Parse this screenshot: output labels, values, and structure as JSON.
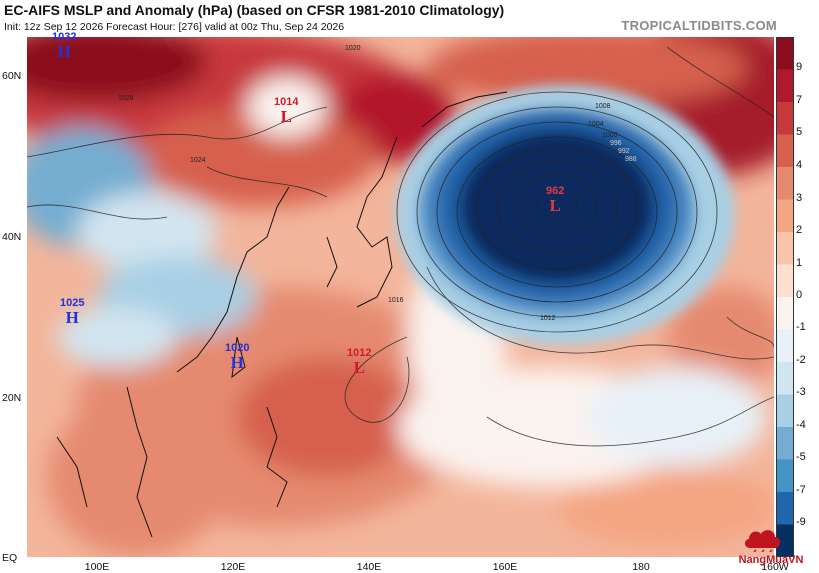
{
  "header": {
    "title": "EC-AIFS MSLP and Anomaly (hPa) (based on CFSR 1981-2010 Climatology)",
    "subtitle": "Init: 12z Sep 12 2026   Forecast Hour: [276]   valid at 00z Thu, Sep 24 2026",
    "brand": "TROPICALTIDBITS.COM"
  },
  "axes": {
    "lat_labels": [
      "60N",
      "40N",
      "20N",
      "EQ"
    ],
    "lon_labels": [
      "100E",
      "120E",
      "140E",
      "160E",
      "180",
      "160W"
    ]
  },
  "colorbar": {
    "labels": [
      "9",
      "7",
      "5",
      "4",
      "3",
      "2",
      "1",
      "0",
      "-1",
      "-2",
      "-3",
      "-4",
      "-5",
      "-7",
      "-9"
    ],
    "colors": [
      "#8c0d1f",
      "#b2182b",
      "#c8393c",
      "#d6604d",
      "#e58a6f",
      "#f4a582",
      "#f9c6ac",
      "#fde0d0",
      "#fbf3ef",
      "#e8f1f8",
      "#d1e5f0",
      "#a8cfe4",
      "#74add1",
      "#4393c3",
      "#2166ac",
      "#053061"
    ]
  },
  "pressure_systems": [
    {
      "pressure": "1032",
      "symbol": "H",
      "kind": "high"
    },
    {
      "pressure": "1014",
      "symbol": "L",
      "kind": "low"
    },
    {
      "pressure": "962",
      "symbol": "L",
      "kind": "low"
    },
    {
      "pressure": "1025",
      "symbol": "H",
      "kind": "high"
    },
    {
      "pressure": "1020",
      "symbol": "H",
      "kind": "high"
    },
    {
      "pressure": "1012",
      "symbol": "L",
      "kind": "low"
    }
  ],
  "isobar_labels": [
    "1020",
    "1028",
    "1016",
    "1012",
    "1008",
    "1004",
    "1000",
    "996",
    "992",
    "988",
    "1024"
  ],
  "watermark": {
    "text": "NangMuaVN"
  }
}
